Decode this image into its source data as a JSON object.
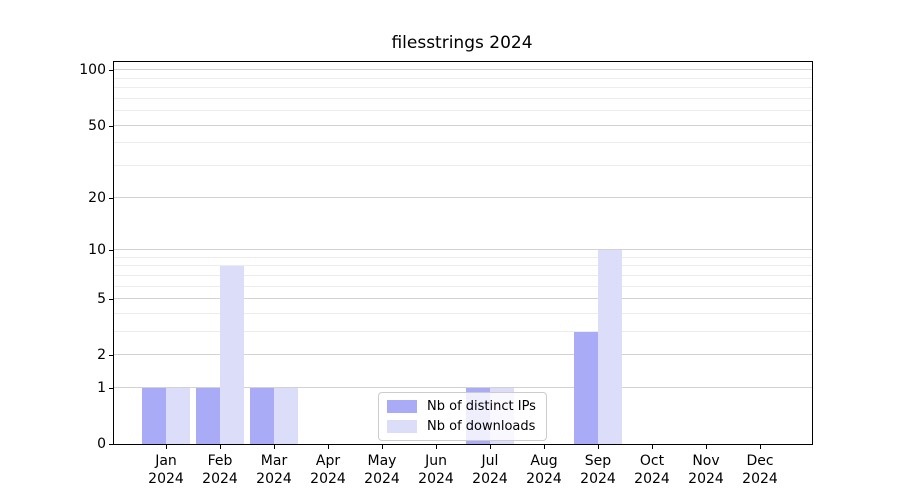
{
  "title": "filesstrings 2024",
  "chart_data": {
    "type": "bar",
    "title": "filesstrings 2024",
    "x_labels": [
      {
        "month": "Jan",
        "year": "2024"
      },
      {
        "month": "Feb",
        "year": "2024"
      },
      {
        "month": "Mar",
        "year": "2024"
      },
      {
        "month": "Apr",
        "year": "2024"
      },
      {
        "month": "May",
        "year": "2024"
      },
      {
        "month": "Jun",
        "year": "2024"
      },
      {
        "month": "Jul",
        "year": "2024"
      },
      {
        "month": "Aug",
        "year": "2024"
      },
      {
        "month": "Sep",
        "year": "2024"
      },
      {
        "month": "Oct",
        "year": "2024"
      },
      {
        "month": "Nov",
        "year": "2024"
      },
      {
        "month": "Dec",
        "year": "2024"
      }
    ],
    "series": [
      {
        "name": "Nb of distinct IPs",
        "color": "#aaabf6",
        "values": [
          1,
          1,
          1,
          0,
          0,
          0,
          1,
          0,
          3,
          0,
          0,
          0
        ]
      },
      {
        "name": "Nb of downloads",
        "color": "#dcddf9",
        "values": [
          1,
          8,
          1,
          0,
          0,
          0,
          1,
          0,
          10,
          0,
          0,
          0
        ]
      }
    ],
    "yscale": "log1p",
    "ylim": [
      0,
      111
    ],
    "yticks": [
      {
        "value": 0,
        "label": "0"
      },
      {
        "value": 1,
        "label": "1"
      },
      {
        "value": 2,
        "label": "2"
      },
      {
        "value": 5,
        "label": "5"
      },
      {
        "value": 10,
        "label": "10"
      },
      {
        "value": 20,
        "label": "20"
      },
      {
        "value": 50,
        "label": "50"
      },
      {
        "value": 100,
        "label": "100"
      }
    ],
    "yticks_minor": [
      3,
      4,
      6,
      7,
      8,
      9,
      30,
      40,
      60,
      70,
      80,
      90
    ],
    "grid": "both",
    "legend": {
      "position": "lower-center",
      "items": [
        "Nb of distinct IPs",
        "Nb of downloads"
      ]
    }
  }
}
